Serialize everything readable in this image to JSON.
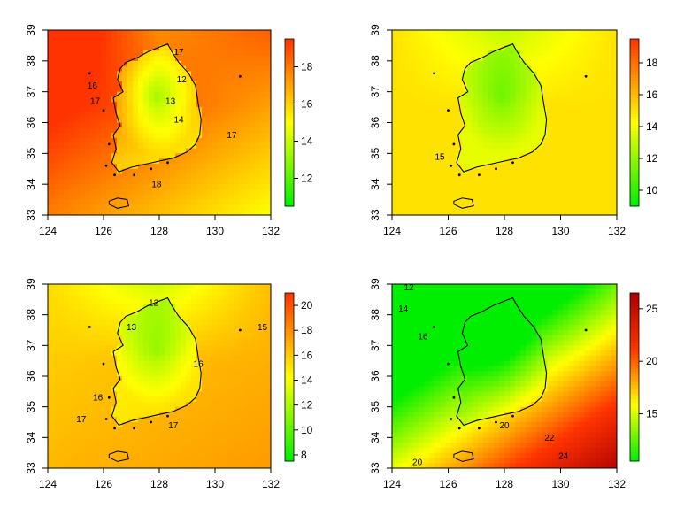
{
  "chart_data": [
    {
      "type": "heatmap",
      "title": "",
      "xlabel": "",
      "ylabel": "",
      "xlim": [
        124,
        132
      ],
      "ylim": [
        33,
        39
      ],
      "x_ticks": [
        "124",
        "126",
        "128",
        "130",
        "132"
      ],
      "y_ticks": [
        "33",
        "34",
        "35",
        "36",
        "37",
        "38",
        "39"
      ],
      "colorbar_range": [
        10.5,
        19.5
      ],
      "colorbar_ticks": [
        "12",
        "14",
        "16",
        "18"
      ],
      "colormap": [
        "#00ee00",
        "#ffff00",
        "#ff3300"
      ],
      "contour_labels": [
        "16",
        "17",
        "18",
        "17",
        "14",
        "13",
        "12",
        "17"
      ],
      "field": {
        "baseline": 18.2,
        "sea_gradient": -0.6,
        "land_drop": 5.0,
        "northeast_drop": 2.5
      }
    },
    {
      "type": "heatmap",
      "title": "",
      "xlabel": "",
      "ylabel": "",
      "xlim": [
        124,
        132
      ],
      "ylim": [
        33,
        39
      ],
      "x_ticks": [
        "124",
        "126",
        "128",
        "130",
        "132"
      ],
      "y_ticks": [
        "33",
        "34",
        "35",
        "36",
        "37",
        "38",
        "39"
      ],
      "colorbar_range": [
        9,
        19.5
      ],
      "colorbar_ticks": [
        "10",
        "12",
        "14",
        "16",
        "18"
      ],
      "colormap": [
        "#00ee00",
        "#ffff00",
        "#ff3300"
      ],
      "contour_labels": [
        "15"
      ],
      "field": {
        "baseline": 15.0,
        "sea_gradient": 0,
        "land_drop": 3.5,
        "northeast_drop": 2.0
      }
    },
    {
      "type": "heatmap",
      "title": "",
      "xlabel": "",
      "ylabel": "",
      "xlim": [
        124,
        132
      ],
      "ylim": [
        33,
        39
      ],
      "x_ticks": [
        "124",
        "126",
        "128",
        "130",
        "132"
      ],
      "y_ticks": [
        "33",
        "34",
        "35",
        "36",
        "37",
        "38",
        "39"
      ],
      "colorbar_range": [
        7.5,
        21
      ],
      "colorbar_ticks": [
        "8",
        "10",
        "12",
        "14",
        "16",
        "18",
        "20"
      ],
      "colormap": [
        "#00ee00",
        "#ffff00",
        "#ff3300"
      ],
      "contour_labels": [
        "12",
        "13",
        "15",
        "16",
        "16",
        "17",
        "17"
      ],
      "field": {
        "baseline": 16.5,
        "sea_gradient": 0.2,
        "land_drop": 4.5,
        "northeast_drop": 3.0
      }
    },
    {
      "type": "heatmap",
      "title": "",
      "xlabel": "",
      "ylabel": "",
      "xlim": [
        124,
        132
      ],
      "ylim": [
        33,
        39
      ],
      "x_ticks": [
        "124",
        "126",
        "128",
        "130",
        "132"
      ],
      "y_ticks": [
        "33",
        "34",
        "35",
        "36",
        "37",
        "38",
        "39"
      ],
      "colorbar_range": [
        10.5,
        26.5
      ],
      "colorbar_ticks": [
        "15",
        "20",
        "25"
      ],
      "colormap": [
        "#00ee00",
        "#ffff00",
        "#ff3300",
        "#aa0000"
      ],
      "contour_labels": [
        "12",
        "14",
        "16",
        "20",
        "22",
        "24",
        "20"
      ],
      "field": {
        "baseline": 14.0,
        "sea_gradient": 2.2,
        "land_drop": 2.5,
        "northeast_drop": 2.5
      }
    }
  ]
}
